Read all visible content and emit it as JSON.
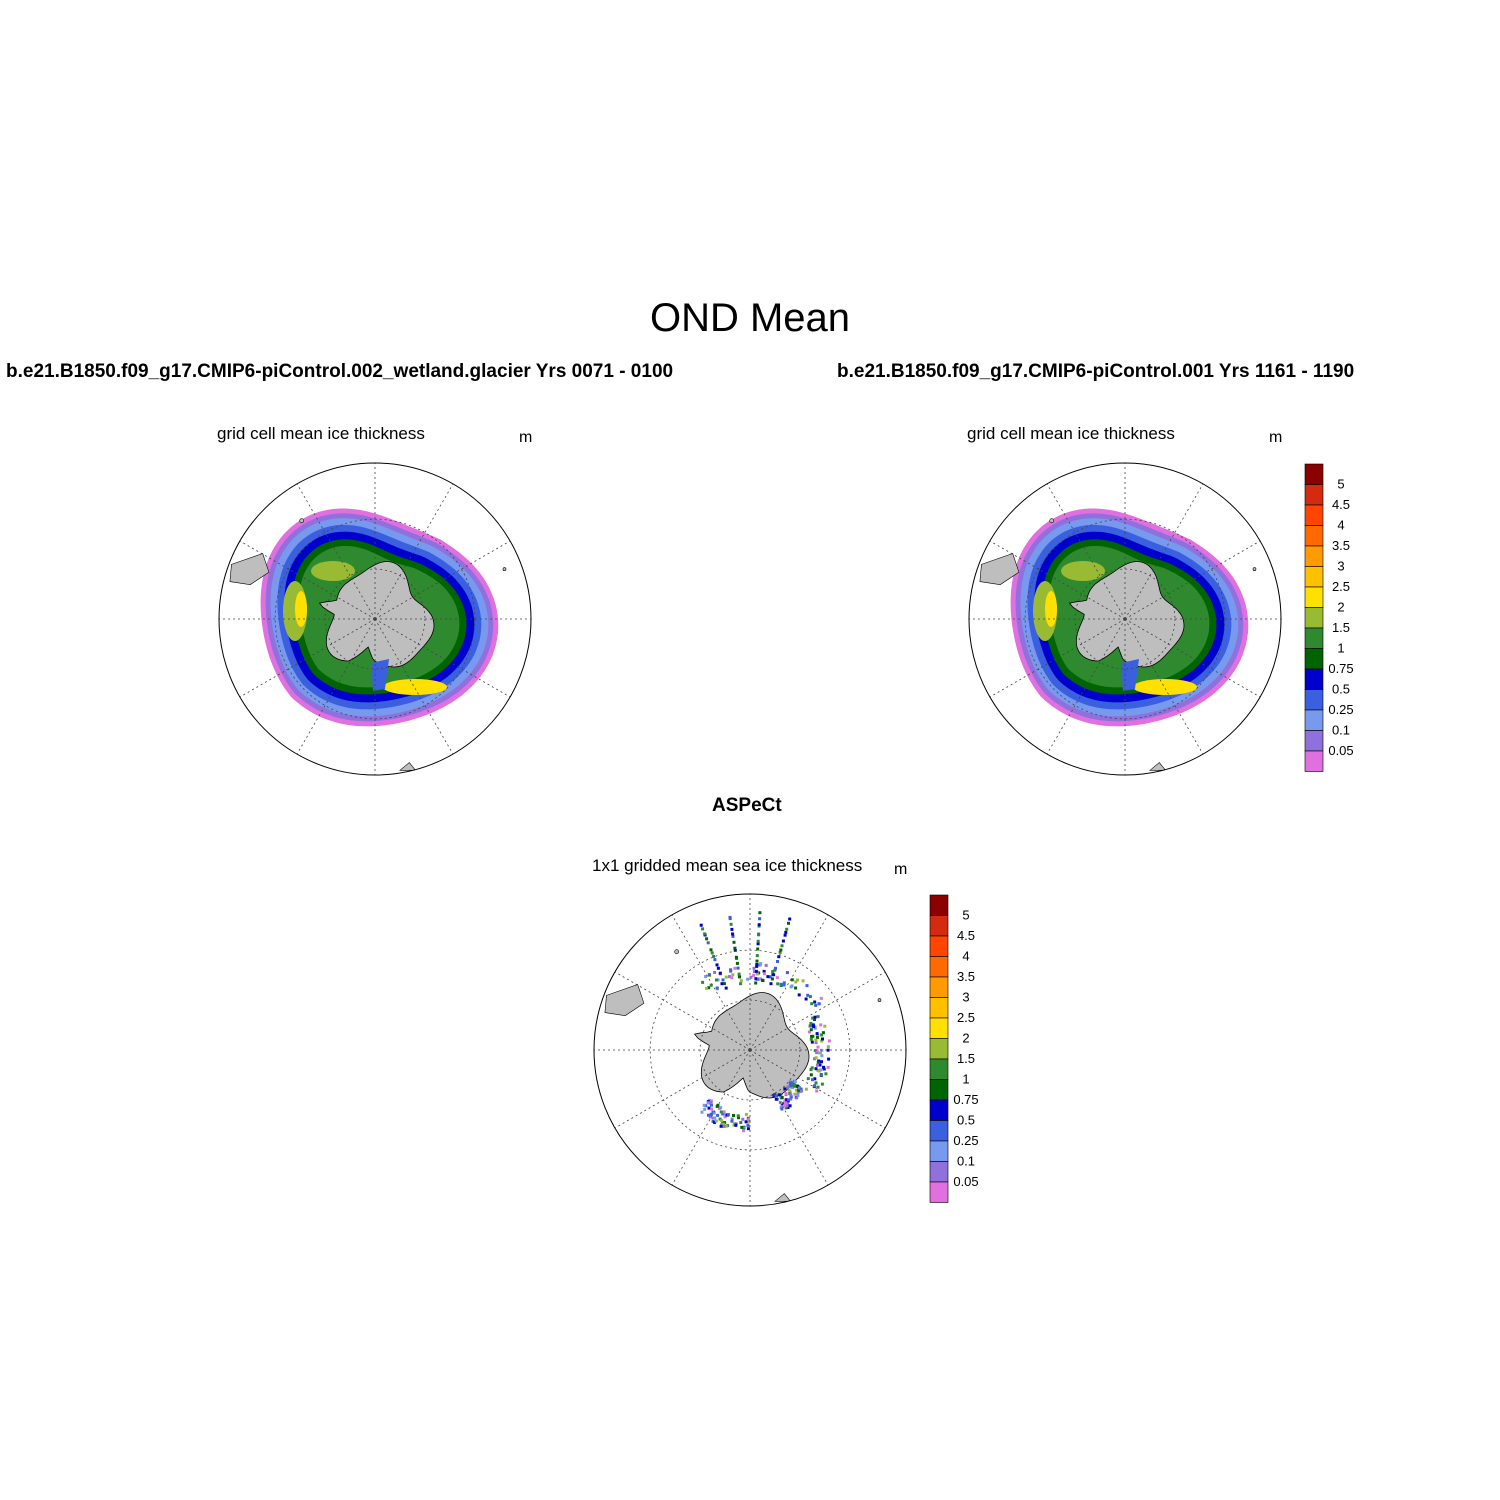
{
  "figure": {
    "title": "OND Mean"
  },
  "panels": [
    {
      "id": "left",
      "case_title": "b.e21.B1850.f09_g17.CMIP6-piControl.002_wetland.glacier  Yrs 0071 - 0100",
      "subtitle": "grid cell mean ice thickness",
      "units": "m"
    },
    {
      "id": "right",
      "case_title": "b.e21.B1850.f09_g17.CMIP6-piControl.001  Yrs 1161 - 1190",
      "subtitle": "grid cell mean ice thickness",
      "units": "m"
    },
    {
      "id": "bottom",
      "case_title": "ASPeCt",
      "subtitle": "1x1 gridded mean sea ice thickness",
      "units": "m"
    }
  ],
  "colorbar": {
    "labels": [
      "5",
      "4.5",
      "4",
      "3.5",
      "3",
      "2.5",
      "2",
      "1.5",
      "1",
      "0.75",
      "0.5",
      "0.25",
      "0.1",
      "0.05"
    ],
    "colors": [
      "#8b0000",
      "#d42a0f",
      "#ff4500",
      "#ff6a00",
      "#ff9a00",
      "#ffc000",
      "#ffe000",
      "#99bb33",
      "#2f8a2f",
      "#006400",
      "#0000cd",
      "#3a60e0",
      "#7799ee",
      "#9070dd",
      "#e070e0"
    ]
  },
  "map_colors": {
    "land": "#bebebe",
    "ocean": "#ffffff"
  }
}
